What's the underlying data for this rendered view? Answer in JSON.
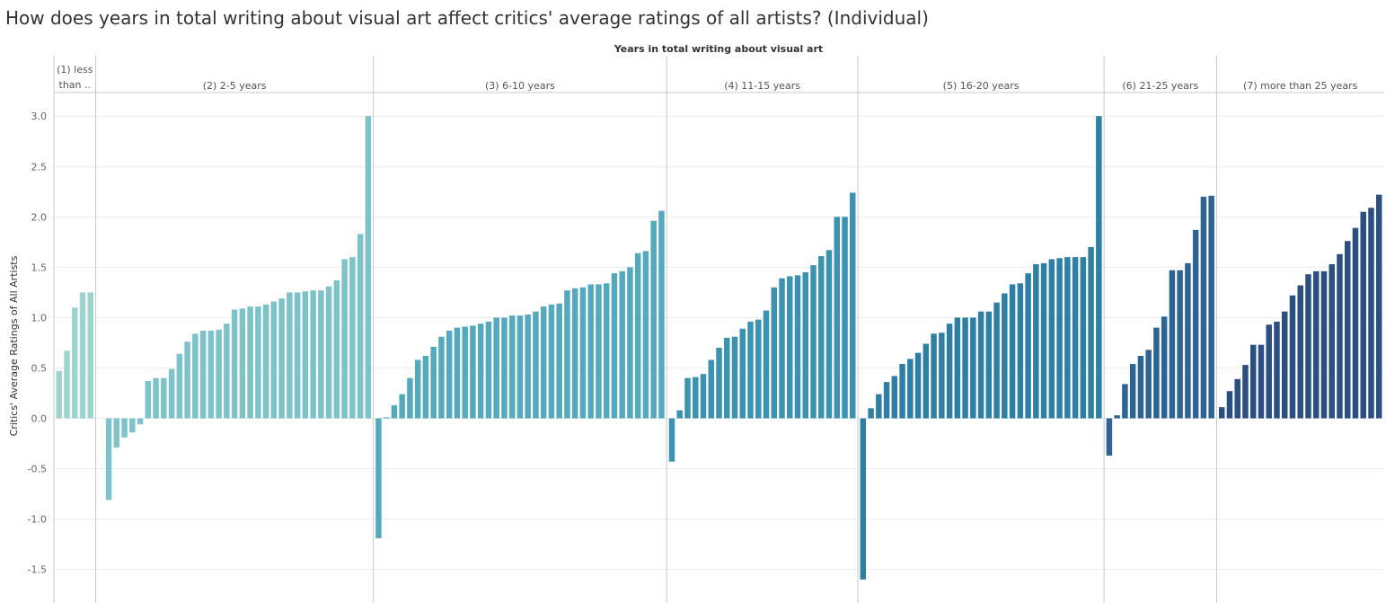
{
  "chart_data": {
    "type": "bar",
    "title": "How does years in total writing about visual art affect critics' average ratings of all artists? (Individual)",
    "xlabel": "Years in total writing about visual art",
    "ylabel": "Critics' Average Ratings of All Artists",
    "ylim": [
      -1.82,
      3.22
    ],
    "yticks": [
      3.0,
      2.5,
      2.0,
      1.5,
      1.0,
      0.5,
      0.0,
      -0.5,
      -1.0,
      -1.5
    ],
    "ytick_labels": [
      "3.0",
      "2.5",
      "2.0",
      "1.5",
      "1.0",
      "0.5",
      "0.0",
      "-0.5",
      "-1.0",
      "-1.5"
    ],
    "grid": true,
    "groups": [
      {
        "name": "(1) less than ..",
        "label_lines": [
          "(1) less",
          "than .."
        ],
        "color": "#9dd4cf",
        "values": [
          0.47,
          0.67,
          1.1,
          1.25,
          1.25
        ]
      },
      {
        "name": "(2) 2-5 years",
        "label_lines": [
          "(2) 2-5 years"
        ],
        "color": "#7ec3ca",
        "values": [
          0,
          -0.81,
          -0.29,
          -0.19,
          -0.14,
          -0.06,
          0.37,
          0.4,
          0.4,
          0.49,
          0.64,
          0.76,
          0.84,
          0.87,
          0.87,
          0.88,
          0.94,
          1.08,
          1.09,
          1.11,
          1.11,
          1.13,
          1.16,
          1.19,
          1.25,
          1.25,
          1.26,
          1.27,
          1.27,
          1.31,
          1.37,
          1.58,
          1.6,
          1.83,
          3.0
        ]
      },
      {
        "name": "(3) 6-10 years",
        "label_lines": [
          "(3) 6-10 years"
        ],
        "color": "#55a9bd",
        "values": [
          -1.19,
          0.01,
          0.13,
          0.24,
          0.4,
          0.58,
          0.62,
          0.71,
          0.81,
          0.87,
          0.9,
          0.91,
          0.92,
          0.94,
          0.96,
          1.0,
          1.0,
          1.02,
          1.02,
          1.03,
          1.06,
          1.11,
          1.13,
          1.14,
          1.27,
          1.29,
          1.3,
          1.33,
          1.33,
          1.34,
          1.44,
          1.46,
          1.5,
          1.64,
          1.66,
          1.96,
          2.06
        ]
      },
      {
        "name": "(4) 11-15 years",
        "label_lines": [
          "(4) 11-15 years"
        ],
        "color": "#3b93b0",
        "values": [
          -0.43,
          0.08,
          0.4,
          0.41,
          0.44,
          0.58,
          0.7,
          0.8,
          0.81,
          0.89,
          0.96,
          0.98,
          1.07,
          1.3,
          1.39,
          1.41,
          1.42,
          1.45,
          1.52,
          1.61,
          1.67,
          2.0,
          2.0,
          2.24
        ]
      },
      {
        "name": "(5) 16-20 years",
        "label_lines": [
          "(5) 16-20 years"
        ],
        "color": "#2f7fa4",
        "values": [
          -1.6,
          0.1,
          0.24,
          0.36,
          0.42,
          0.54,
          0.59,
          0.65,
          0.74,
          0.84,
          0.85,
          0.94,
          1.0,
          1.0,
          1.0,
          1.06,
          1.06,
          1.15,
          1.24,
          1.33,
          1.34,
          1.44,
          1.53,
          1.54,
          1.58,
          1.59,
          1.6,
          1.6,
          1.6,
          1.7,
          3.0
        ]
      },
      {
        "name": "(6) 21-25 years",
        "label_lines": [
          "(6) 21-25 years"
        ],
        "color": "#2d6494",
        "values": [
          -0.37,
          0.03,
          0.34,
          0.54,
          0.62,
          0.68,
          0.9,
          1.01,
          1.47,
          1.47,
          1.54,
          1.87,
          2.2,
          2.21
        ]
      },
      {
        "name": "(7) more than 25 years",
        "label_lines": [
          "(7) more than 25 years"
        ],
        "color": "#2a4f80",
        "values": [
          0.11,
          0.27,
          0.39,
          0.53,
          0.73,
          0.73,
          0.93,
          0.96,
          1.06,
          1.22,
          1.32,
          1.43,
          1.46,
          1.46,
          1.53,
          1.63,
          1.76,
          1.89,
          2.05,
          2.09,
          2.22
        ]
      }
    ]
  }
}
